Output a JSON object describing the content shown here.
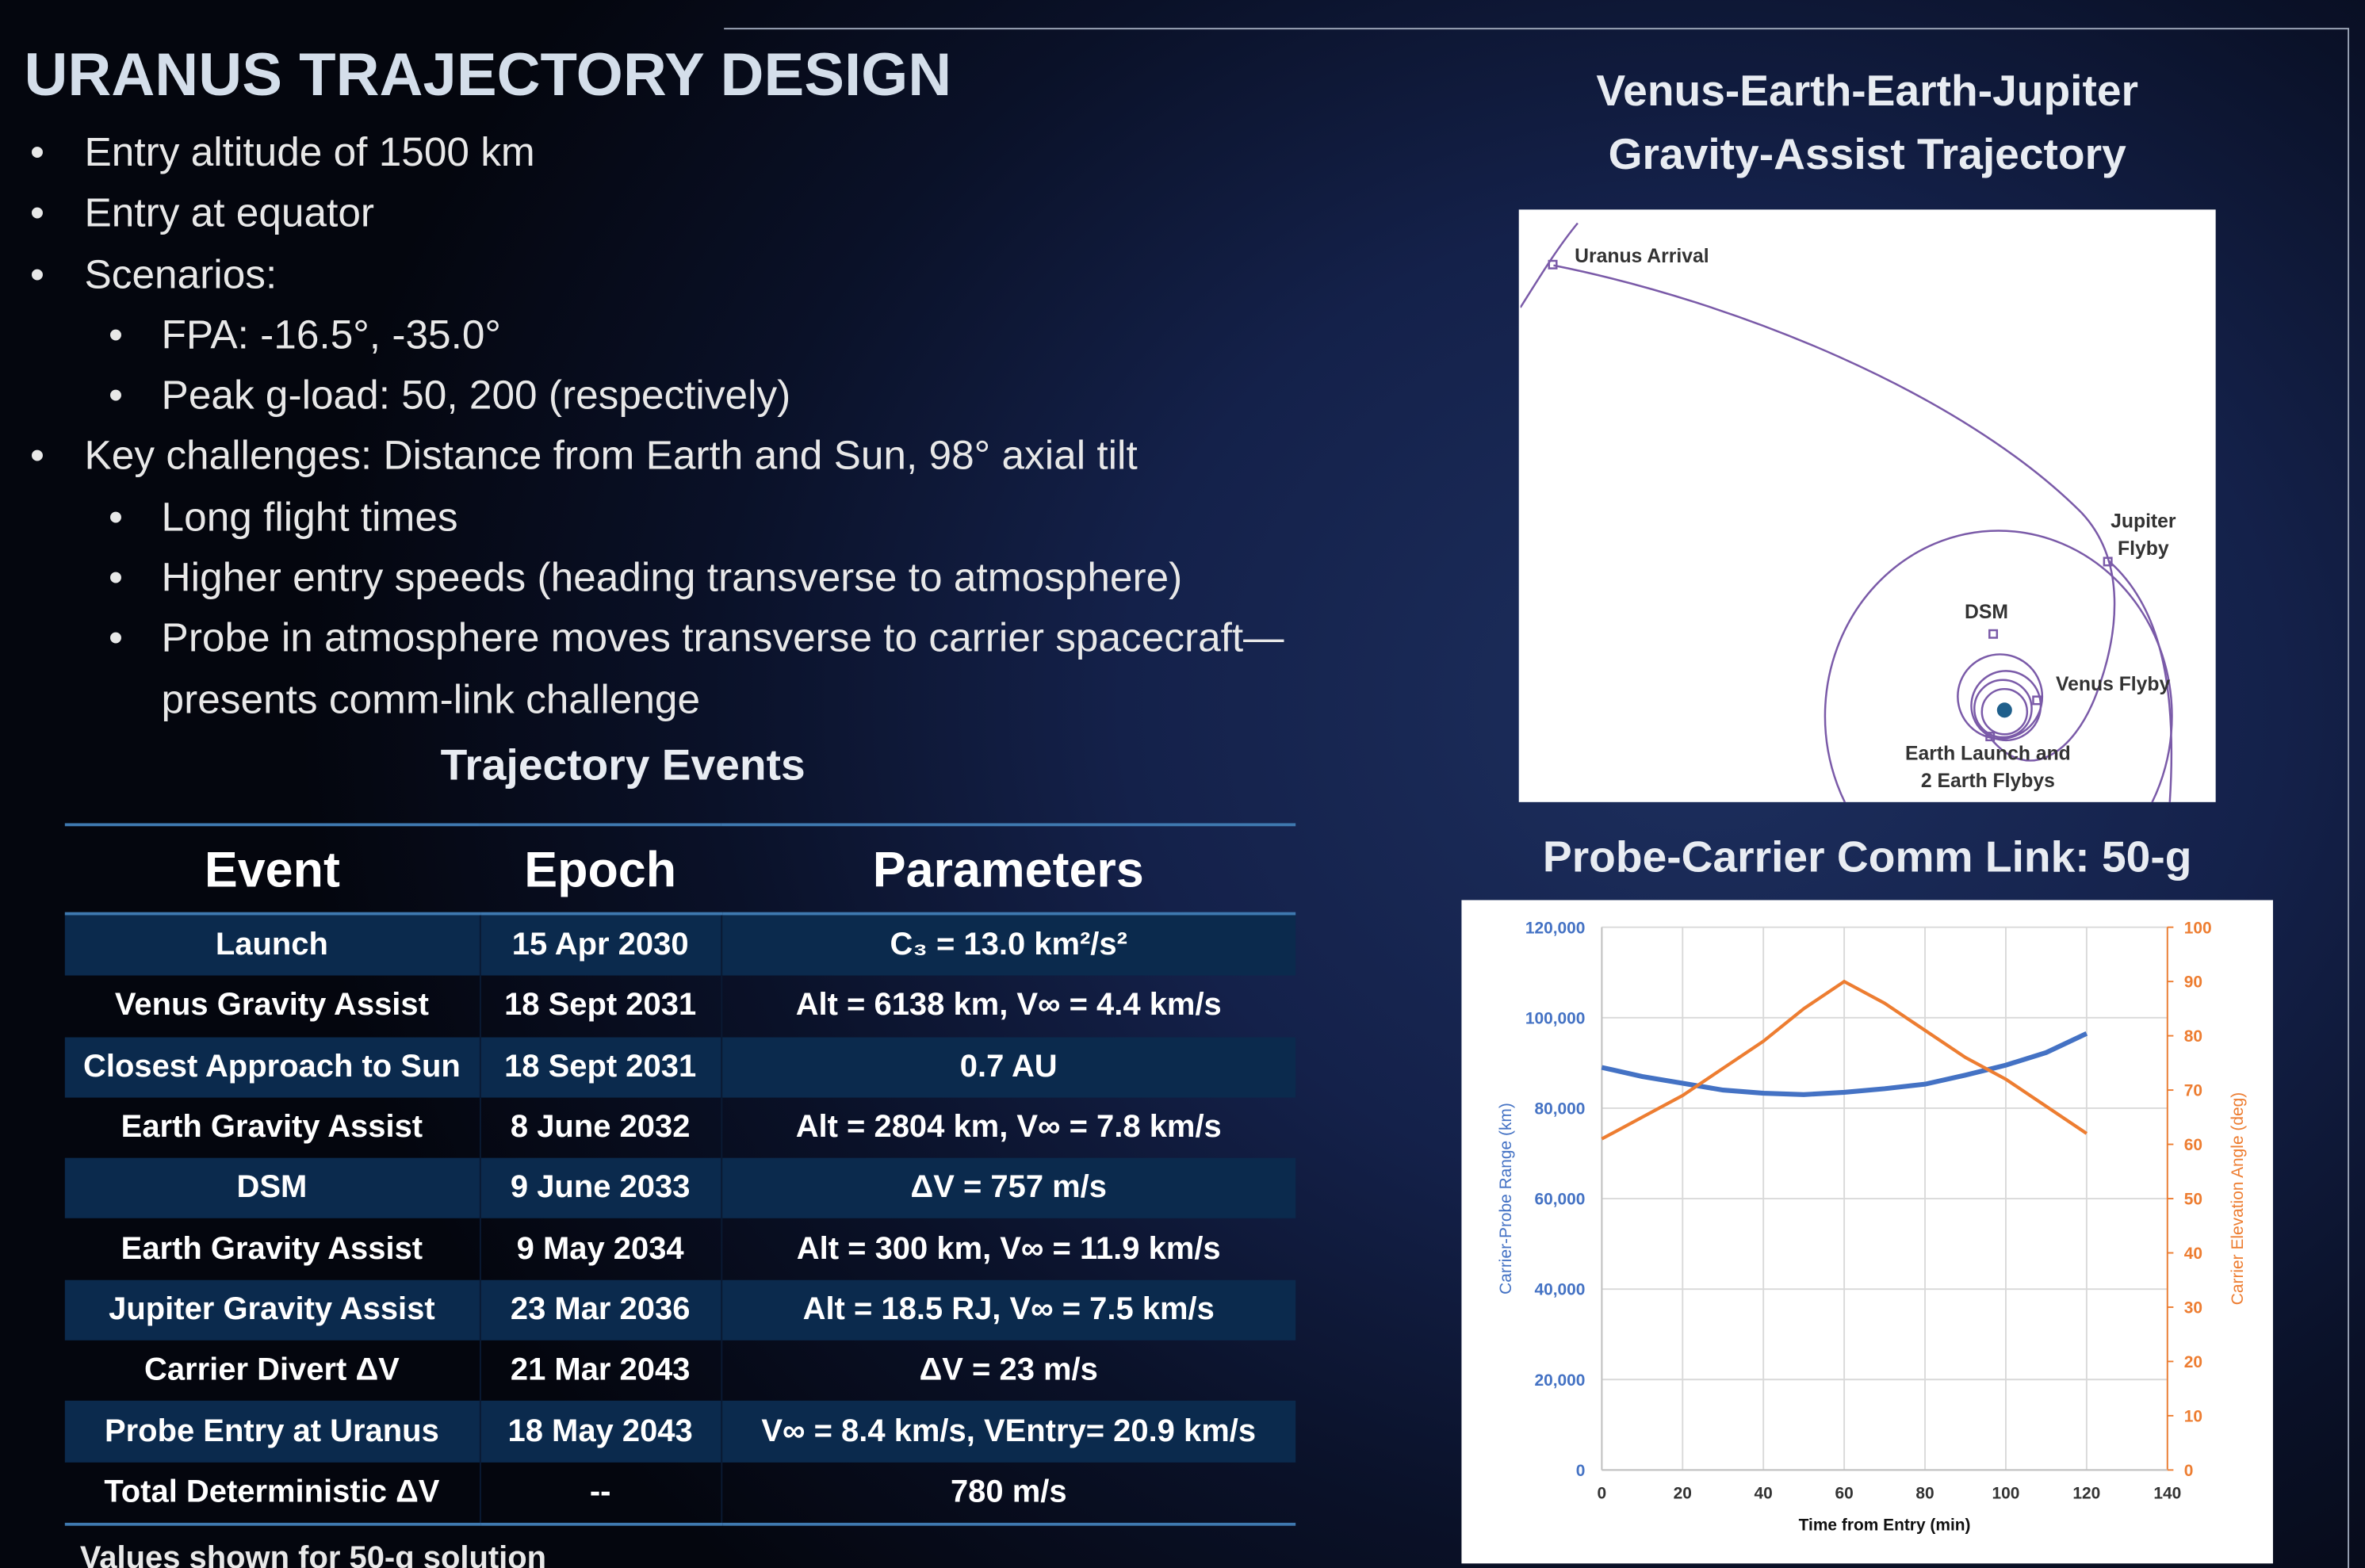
{
  "header": {
    "title": "URANUS TRAJECTORY DESIGN"
  },
  "bullets": [
    {
      "text": "Entry altitude of 1500 km"
    },
    {
      "text": "Entry at equator"
    },
    {
      "text": "Scenarios:",
      "items": [
        "FPA: -16.5°, -35.0°",
        "Peak g-load: 50, 200 (respectively)"
      ]
    },
    {
      "text": "Key challenges:  Distance from Earth and Sun, 98° axial tilt",
      "items": [
        "Long flight times",
        "Higher entry speeds (heading transverse to atmosphere)",
        "Probe in atmosphere moves transverse to carrier spacecraft—presents comm-link challenge"
      ]
    }
  ],
  "table": {
    "title": "Trajectory Events",
    "columns": [
      "Event",
      "Epoch",
      "Parameters"
    ],
    "rows": [
      [
        "Launch",
        "15 Apr 2030",
        "C₃ = 13.0 km²/s²"
      ],
      [
        "Venus Gravity Assist",
        "18 Sept 2031",
        "Alt = 6138 km, V∞ = 4.4 km/s"
      ],
      [
        "Closest Approach to Sun",
        "18 Sept 2031",
        "0.7 AU"
      ],
      [
        "Earth Gravity Assist",
        "8 June 2032",
        "Alt = 2804 km, V∞ = 7.8 km/s"
      ],
      [
        "DSM",
        "9 June 2033",
        "ΔV = 757 m/s"
      ],
      [
        "Earth Gravity Assist",
        "9 May 2034",
        "Alt = 300 km, V∞ = 11.9 km/s"
      ],
      [
        "Jupiter Gravity Assist",
        "23 Mar 2036",
        "Alt = 18.5 RJ, V∞ =  7.5 km/s"
      ],
      [
        "Carrier Divert ΔV",
        "21 Mar 2043",
        "ΔV = 23 m/s"
      ],
      [
        "Probe Entry at Uranus",
        "18 May 2043",
        "V∞ = 8.4 km/s, VEntry= 20.9 km/s"
      ],
      [
        "Total Deterministic ΔV",
        "--",
        "780 m/s"
      ]
    ],
    "note": "Values shown for 50-g solution"
  },
  "trajectory": {
    "title": [
      "Venus-Earth-Earth-Jupiter",
      "Gravity-Assist Trajectory"
    ],
    "labels": [
      [
        "Uranus Arrival"
      ],
      [
        "Jupiter",
        "Flyby"
      ],
      [
        "DSM"
      ],
      [
        "Venus Flyby"
      ],
      [
        "Earth Launch and",
        "2 Earth Flybys"
      ]
    ]
  },
  "chart_data": {
    "type": "line",
    "title": "Probe-Carrier Comm Link: 50-g",
    "x_label": "Time from Entry (min)",
    "y_label": "Carrier-Probe Range (km)",
    "y2_label": "Carrier Elevation Angle (deg)",
    "x": [
      0,
      10,
      20,
      30,
      40,
      50,
      60,
      70,
      80,
      90,
      100,
      110,
      120
    ],
    "series": [
      {
        "name": "Carrier-Probe Range (km)",
        "color": "#4472c4",
        "values": [
          89000,
          87000,
          85500,
          84000,
          83300,
          83000,
          83500,
          84300,
          85300,
          87300,
          89500,
          92300,
          96500
        ]
      },
      {
        "name": "Carrier Elevation Angle (deg)",
        "color": "#ed7d31",
        "axis": "y2",
        "values": [
          61,
          65,
          69,
          74,
          79,
          85,
          90,
          86,
          81,
          76,
          72,
          67,
          62
        ]
      }
    ],
    "xlim": [
      0,
      140
    ],
    "xticks": [
      0,
      20,
      40,
      60,
      80,
      100,
      120,
      140
    ],
    "ylim": [
      0,
      120000
    ],
    "yticks": [
      0,
      {
        "value": 20000,
        "label": "20,000"
      },
      {
        "value": 40000,
        "label": "40,000"
      },
      {
        "value": 60000,
        "label": "60,000"
      },
      {
        "value": 80000,
        "label": "80,000"
      },
      {
        "value": 100000,
        "label": "100,000"
      },
      {
        "value": 120000,
        "label": "120,000"
      }
    ],
    "y2lim": [
      0,
      100
    ],
    "y2ticks": [
      0,
      10,
      20,
      30,
      40,
      50,
      60,
      70,
      80,
      90,
      100
    ],
    "grid": true
  }
}
